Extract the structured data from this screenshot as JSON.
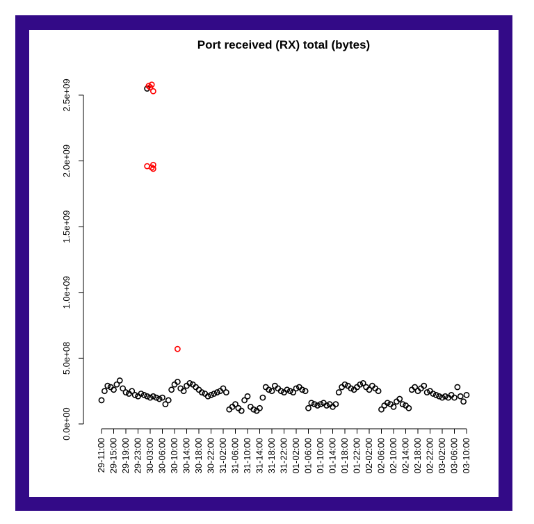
{
  "chart_data": {
    "type": "scatter",
    "title": "Port received (RX) total (bytes)",
    "series": [
      {
        "color": "#000000",
        "x": [
          0,
          1,
          2,
          3,
          4,
          5,
          6,
          7,
          8,
          9,
          10,
          11,
          12,
          13,
          14,
          15,
          16,
          17,
          18,
          19,
          20,
          21,
          22,
          23,
          24,
          25,
          26,
          27,
          28,
          29,
          30,
          31,
          32,
          33,
          34,
          35,
          36,
          37,
          38,
          39,
          40,
          41,
          42,
          43,
          44,
          45,
          46,
          47,
          48,
          49,
          50,
          51,
          52,
          53,
          54,
          55,
          56,
          57,
          58,
          59,
          60,
          61,
          62,
          63,
          64,
          65,
          66,
          67,
          68,
          69,
          70,
          71,
          72,
          73,
          74,
          75,
          76,
          77,
          78,
          79,
          80,
          81,
          82,
          83,
          84,
          85,
          86,
          87,
          88,
          89,
          90,
          91,
          92,
          93,
          94,
          95,
          96,
          97,
          98,
          99,
          100,
          101,
          102,
          103,
          104,
          105,
          106,
          107,
          108,
          109,
          110,
          111,
          112,
          113,
          114,
          115,
          116,
          117,
          118,
          119,
          120,
          15
        ],
        "values": [
          180000000.0,
          250000000.0,
          290000000.0,
          280000000.0,
          260000000.0,
          300000000.0,
          330000000.0,
          270000000.0,
          240000000.0,
          230000000.0,
          250000000.0,
          220000000.0,
          210000000.0,
          230000000.0,
          220000000.0,
          210000000.0,
          200000000.0,
          210000000.0,
          200000000.0,
          190000000.0,
          200000000.0,
          150000000.0,
          180000000.0,
          260000000.0,
          300000000.0,
          320000000.0,
          270000000.0,
          250000000.0,
          290000000.0,
          310000000.0,
          300000000.0,
          280000000.0,
          260000000.0,
          240000000.0,
          230000000.0,
          210000000.0,
          220000000.0,
          230000000.0,
          240000000.0,
          250000000.0,
          270000000.0,
          240000000.0,
          110000000.0,
          130000000.0,
          150000000.0,
          120000000.0,
          100000000.0,
          180000000.0,
          210000000.0,
          130000000.0,
          110000000.0,
          100000000.0,
          120000000.0,
          200000000.0,
          280000000.0,
          260000000.0,
          250000000.0,
          290000000.0,
          270000000.0,
          250000000.0,
          240000000.0,
          260000000.0,
          250000000.0,
          240000000.0,
          270000000.0,
          280000000.0,
          260000000.0,
          250000000.0,
          120000000.0,
          160000000.0,
          150000000.0,
          140000000.0,
          150000000.0,
          160000000.0,
          140000000.0,
          150000000.0,
          130000000.0,
          150000000.0,
          240000000.0,
          280000000.0,
          300000000.0,
          290000000.0,
          270000000.0,
          260000000.0,
          280000000.0,
          300000000.0,
          310000000.0,
          280000000.0,
          260000000.0,
          290000000.0,
          270000000.0,
          250000000.0,
          110000000.0,
          140000000.0,
          160000000.0,
          150000000.0,
          130000000.0,
          170000000.0,
          190000000.0,
          150000000.0,
          140000000.0,
          120000000.0,
          260000000.0,
          280000000.0,
          250000000.0,
          270000000.0,
          290000000.0,
          240000000.0,
          250000000.0,
          230000000.0,
          220000000.0,
          210000000.0,
          200000000.0,
          210000000.0,
          200000000.0,
          220000000.0,
          200000000.0,
          280000000.0,
          210000000.0,
          170000000.0,
          220000000.0,
          2550000000.0
        ]
      },
      {
        "color": "#ff0000",
        "x": [
          15,
          16.5,
          17,
          17,
          15.5,
          16.5,
          17,
          16,
          25
        ],
        "values": [
          1960000000.0,
          1950000000.0,
          1940000000.0,
          1970000000.0,
          2570000000.0,
          2580000000.0,
          2530000000.0,
          2560000000.0,
          570000000.0
        ]
      }
    ],
    "xlim": [
      0,
      120
    ],
    "xticks": [
      {
        "value": 0,
        "label": "29-11:00"
      },
      {
        "value": 4,
        "label": "29-15:00"
      },
      {
        "value": 8,
        "label": "29-19:00"
      },
      {
        "value": 12,
        "label": "29-23:00"
      },
      {
        "value": 16,
        "label": "30-03:00"
      },
      {
        "value": 20,
        "label": "30-06:00"
      },
      {
        "value": 24,
        "label": "30-10:00"
      },
      {
        "value": 28,
        "label": "30-14:00"
      },
      {
        "value": 32,
        "label": "30-18:00"
      },
      {
        "value": 36,
        "label": "30-22:00"
      },
      {
        "value": 40,
        "label": "31-02:00"
      },
      {
        "value": 44,
        "label": "31-06:00"
      },
      {
        "value": 48,
        "label": "31-10:00"
      },
      {
        "value": 52,
        "label": "31-14:00"
      },
      {
        "value": 56,
        "label": "31-18:00"
      },
      {
        "value": 60,
        "label": "31-22:00"
      },
      {
        "value": 64,
        "label": "01-02:00"
      },
      {
        "value": 68,
        "label": "01-06:00"
      },
      {
        "value": 72,
        "label": "01-10:00"
      },
      {
        "value": 76,
        "label": "01-14:00"
      },
      {
        "value": 80,
        "label": "01-18:00"
      },
      {
        "value": 84,
        "label": "01-22:00"
      },
      {
        "value": 88,
        "label": "02-02:00"
      },
      {
        "value": 92,
        "label": "02-06:00"
      },
      {
        "value": 96,
        "label": "02-10:00"
      },
      {
        "value": 100,
        "label": "02-14:00"
      },
      {
        "value": 104,
        "label": "02-18:00"
      },
      {
        "value": 108,
        "label": "02-22:00"
      },
      {
        "value": 112,
        "label": "03-02:00"
      },
      {
        "value": 116,
        "label": "03-06:00"
      },
      {
        "value": 120,
        "label": "03-10:00"
      }
    ],
    "ylim": [
      0,
      2600000000.0
    ],
    "yticks": [
      {
        "value": 0,
        "label": "0.0e+00"
      },
      {
        "value": 500000000.0,
        "label": "5.0e+08"
      },
      {
        "value": 1000000000.0,
        "label": "1.0e+09"
      },
      {
        "value": 1500000000.0,
        "label": "1.5e+09"
      },
      {
        "value": 2000000000.0,
        "label": "2.0e+09"
      },
      {
        "value": 2500000000.0,
        "label": "2.5e+09"
      }
    ],
    "grid": false
  }
}
